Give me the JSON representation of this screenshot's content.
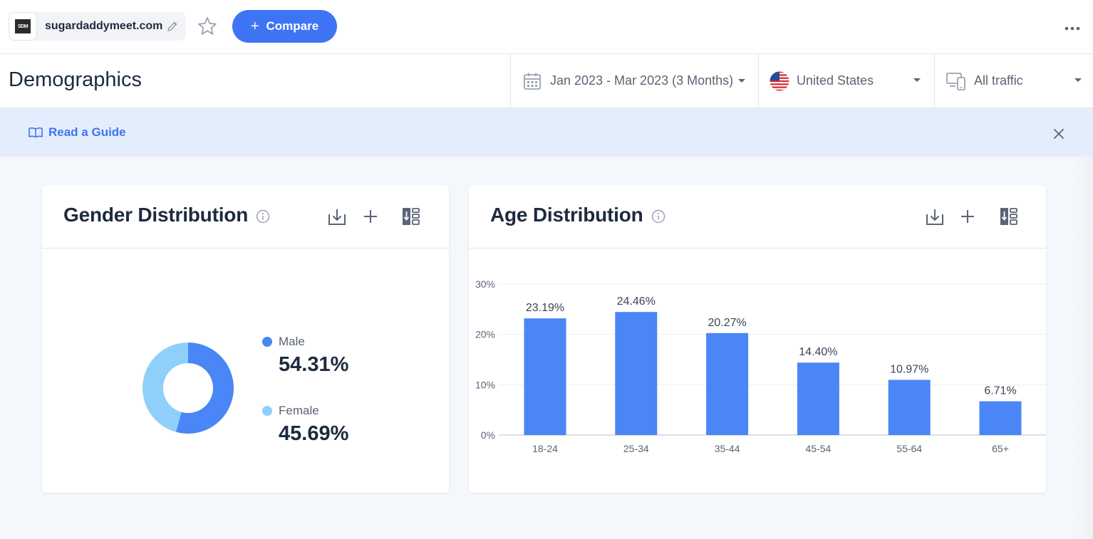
{
  "topbar": {
    "site_logo_text": "SDM",
    "site_name": "sugardaddymeet.com",
    "compare_label": "Compare",
    "compare_plus": "+"
  },
  "header": {
    "title": "Demographics",
    "date_range": "Jan 2023 - Mar 2023 (3 Months)",
    "country": "United States",
    "traffic": "All traffic"
  },
  "guide": {
    "label": "Read a Guide"
  },
  "gender": {
    "title": "Gender Distribution",
    "items": [
      {
        "label": "Male",
        "value": "54.31%",
        "share": 54.31,
        "color": "#4a86f5"
      },
      {
        "label": "Female",
        "value": "45.69%",
        "share": 45.69,
        "color": "#8fd0fb"
      }
    ]
  },
  "age": {
    "title": "Age Distribution"
  },
  "chart_data": [
    {
      "type": "pie",
      "title": "Gender Distribution",
      "categories": [
        "Male",
        "Female"
      ],
      "values": [
        54.31,
        45.69
      ],
      "colors": [
        "#4a86f5",
        "#8fd0fb"
      ]
    },
    {
      "type": "bar",
      "title": "Age Distribution",
      "categories": [
        "18-24",
        "25-34",
        "35-44",
        "45-54",
        "55-64",
        "65+"
      ],
      "values": [
        23.19,
        24.46,
        20.27,
        14.4,
        10.97,
        6.71
      ],
      "value_labels": [
        "23.19%",
        "24.46%",
        "20.27%",
        "14.40%",
        "10.97%",
        "6.71%"
      ],
      "yticks": [
        "0%",
        "10%",
        "20%",
        "30%"
      ],
      "ylim": [
        0,
        30
      ],
      "grid": true,
      "color": "#4a86f5"
    }
  ]
}
